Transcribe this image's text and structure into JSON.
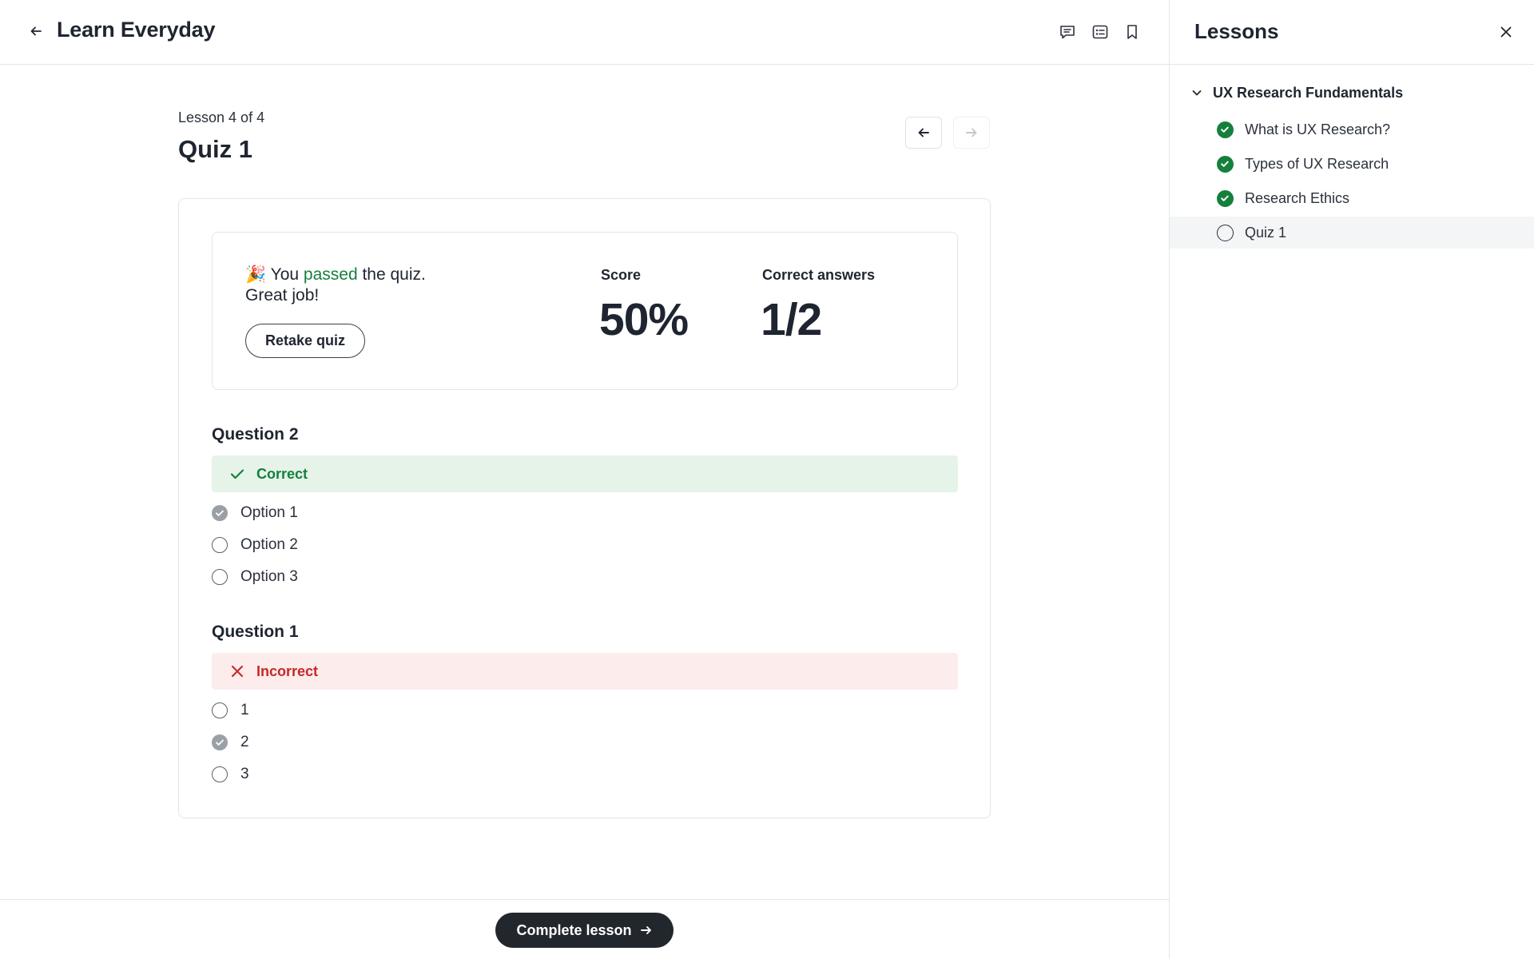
{
  "header": {
    "title": "Learn Everyday",
    "icons": [
      "back-arrow-icon",
      "comment-icon",
      "notes-icon",
      "bookmark-icon"
    ]
  },
  "lesson": {
    "counter": "Lesson 4 of 4",
    "title": "Quiz 1"
  },
  "result": {
    "emoji": "🎉",
    "message_prefix": "You",
    "message_status": "passed",
    "message_suffix": "the quiz.",
    "message_line2": "Great job!",
    "retake_label": "Retake quiz",
    "score_label": "Score",
    "score_value": "50%",
    "correct_label": "Correct answers",
    "correct_value": "1/2"
  },
  "questions": [
    {
      "title": "Question 2",
      "status": "Correct",
      "options": [
        {
          "label": "Option 1",
          "selected": true
        },
        {
          "label": "Option 2",
          "selected": false
        },
        {
          "label": "Option 3",
          "selected": false
        }
      ]
    },
    {
      "title": "Question 1",
      "status": "Incorrect",
      "options": [
        {
          "label": "1",
          "selected": false
        },
        {
          "label": "2",
          "selected": true
        },
        {
          "label": "3",
          "selected": false
        }
      ]
    }
  ],
  "footer": {
    "complete_label": "Complete lesson"
  },
  "sidebar": {
    "title": "Lessons",
    "section": "UX Research Fundamentals",
    "items": [
      {
        "label": "What is UX Research?",
        "done": true
      },
      {
        "label": "Types of UX Research",
        "done": true
      },
      {
        "label": "Research Ethics",
        "done": true
      },
      {
        "label": "Quiz 1",
        "done": false
      }
    ]
  },
  "colors": {
    "success": "#15803d",
    "error": "#c62828",
    "dark": "#22272e"
  }
}
